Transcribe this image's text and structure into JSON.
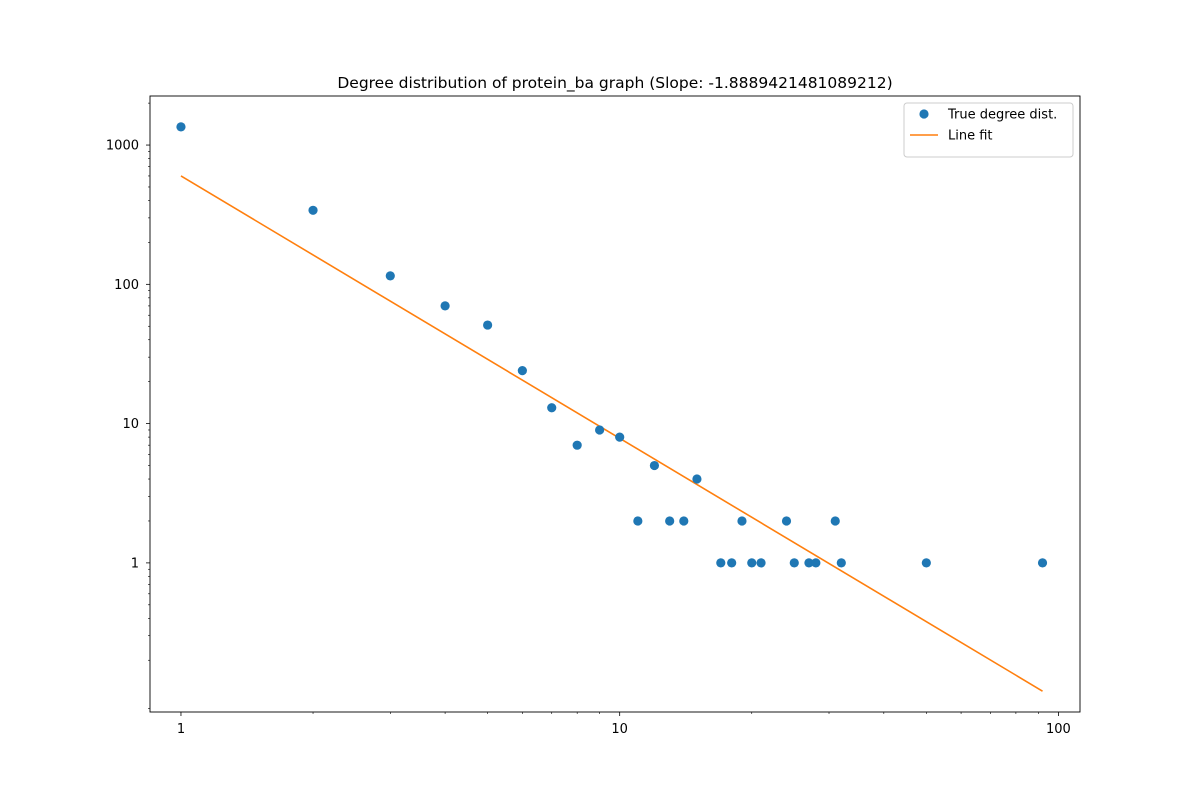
{
  "chart_data": {
    "type": "scatter",
    "title": "Degree distribution of protein_ba graph (Slope: -1.8889421481089212)",
    "xlabel": "",
    "ylabel": "",
    "x_scale": "log",
    "y_scale": "log",
    "xlim": [
      0.85,
      112
    ],
    "ylim": [
      0.085,
      2250
    ],
    "x_ticks": [
      {
        "value": 1,
        "label": "1"
      },
      {
        "value": 10,
        "label": "10"
      },
      {
        "value": 100,
        "label": "100"
      }
    ],
    "y_ticks": [
      {
        "value": 1,
        "label": "1"
      },
      {
        "value": 10,
        "label": "10"
      },
      {
        "value": 100,
        "label": "100"
      },
      {
        "value": 1000,
        "label": "1000"
      }
    ],
    "grid": false,
    "legend_position": "top-right",
    "series": [
      {
        "name": "True degree dist.",
        "kind": "scatter",
        "color": "#1f77b4",
        "points": [
          {
            "x": 1,
            "y": 1350
          },
          {
            "x": 2,
            "y": 340
          },
          {
            "x": 3,
            "y": 115
          },
          {
            "x": 4,
            "y": 70
          },
          {
            "x": 5,
            "y": 51
          },
          {
            "x": 6,
            "y": 24
          },
          {
            "x": 7,
            "y": 13
          },
          {
            "x": 8,
            "y": 7
          },
          {
            "x": 9,
            "y": 9
          },
          {
            "x": 10,
            "y": 8
          },
          {
            "x": 11,
            "y": 2
          },
          {
            "x": 12,
            "y": 5
          },
          {
            "x": 13,
            "y": 2
          },
          {
            "x": 14,
            "y": 2
          },
          {
            "x": 15,
            "y": 4
          },
          {
            "x": 17,
            "y": 1
          },
          {
            "x": 18,
            "y": 1
          },
          {
            "x": 19,
            "y": 2
          },
          {
            "x": 20,
            "y": 1
          },
          {
            "x": 21,
            "y": 1
          },
          {
            "x": 24,
            "y": 2
          },
          {
            "x": 25,
            "y": 1
          },
          {
            "x": 27,
            "y": 1
          },
          {
            "x": 28,
            "y": 1
          },
          {
            "x": 31,
            "y": 2
          },
          {
            "x": 32,
            "y": 1
          },
          {
            "x": 50,
            "y": 1
          },
          {
            "x": 92,
            "y": 1
          }
        ]
      },
      {
        "name": "Line fit",
        "kind": "line",
        "color": "#ff7f0e",
        "points": [
          {
            "x": 1,
            "y": 600
          },
          {
            "x": 92,
            "y": 0.12
          }
        ]
      }
    ]
  }
}
